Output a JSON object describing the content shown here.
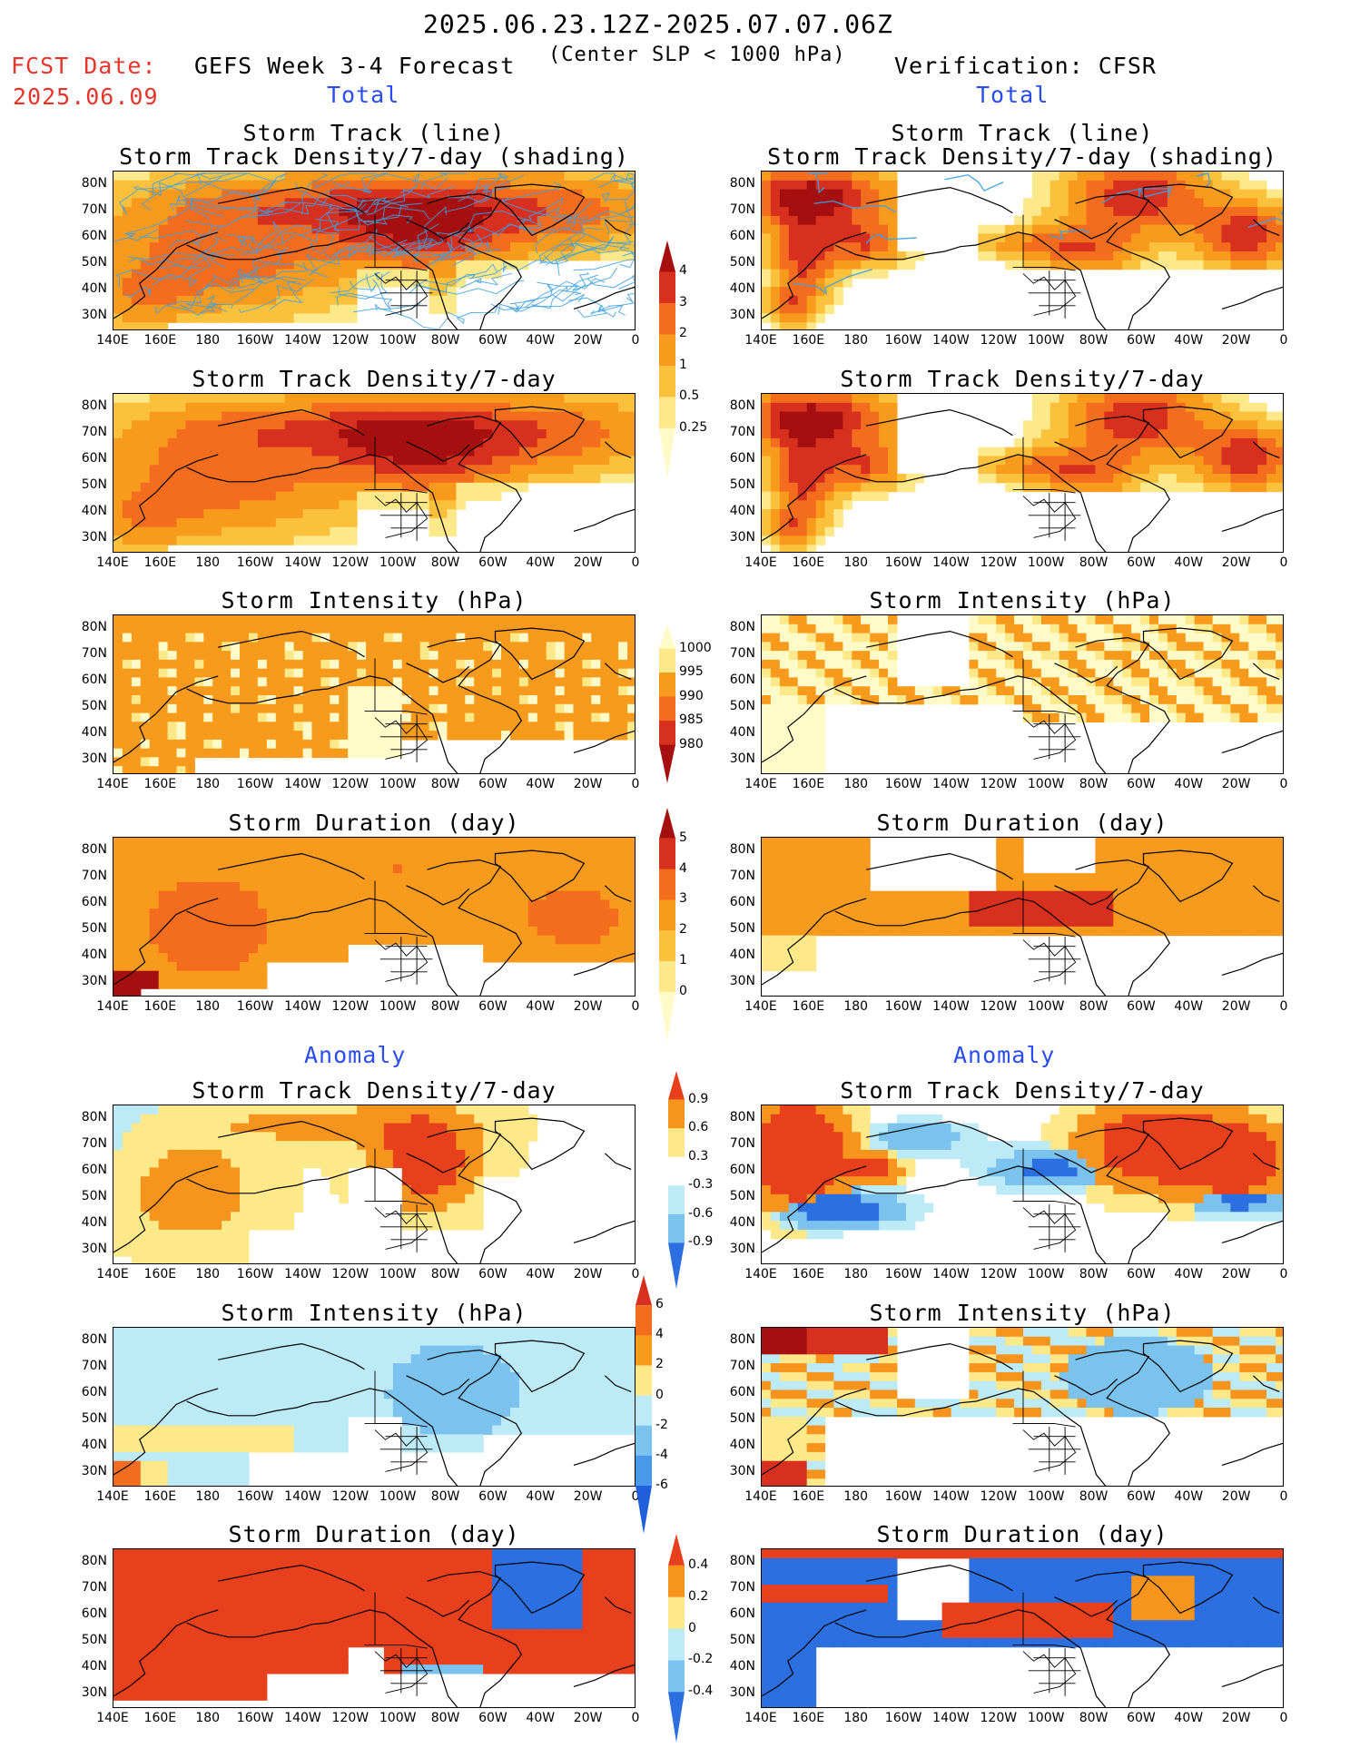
{
  "header": {
    "date_range": "2025.06.23.12Z-2025.07.07.06Z",
    "fcst_label": "FCST Date:",
    "fcst_date": "2025.06.09",
    "left_title": "GEFS Week 3-4 Forecast",
    "center_note": "(Center SLP < 1000 hPa)",
    "right_title": "Verification: CFSR"
  },
  "sections": {
    "total": "Total",
    "anomaly": "Anomaly"
  },
  "panel_titles": {
    "track_line": "Storm Track (line)",
    "track_density_shading": "Storm Track Density/7-day (shading)",
    "track_density": "Storm Track Density/7-day",
    "intensity": "Storm Intensity (hPa)",
    "duration": "Storm Duration (day)"
  },
  "axes": {
    "lat_labels": [
      "80N",
      "70N",
      "60N",
      "50N",
      "40N",
      "30N"
    ],
    "lon_labels": [
      "140E",
      "160E",
      "180",
      "160W",
      "140W",
      "120W",
      "100W",
      "80W",
      "60W",
      "40W",
      "20W",
      "0"
    ]
  },
  "colorbars": {
    "density": {
      "labels": [
        "4",
        "3",
        "2",
        "1",
        "0.5",
        "0.25"
      ],
      "colors": [
        "#a50f0f",
        "#d7301f",
        "#f46d1f",
        "#f89a1c",
        "#fcc13c",
        "#fde88a",
        "#fffbc8"
      ]
    },
    "intensity": {
      "labels": [
        "1000",
        "995",
        "990",
        "985",
        "980"
      ],
      "colors": [
        "#fffbc8",
        "#fde88a",
        "#f89a1c",
        "#f46d1f",
        "#d7301f",
        "#a50f0f"
      ]
    },
    "duration": {
      "labels": [
        "5",
        "4",
        "3",
        "2",
        "1",
        "0"
      ],
      "colors": [
        "#a50f0f",
        "#d7301f",
        "#f46d1f",
        "#f89a1c",
        "#fcc13c",
        "#fde88a",
        "#fffbc8"
      ]
    },
    "anom_density": {
      "labels": [
        "0.9",
        "0.6",
        "0.3",
        "-0.3",
        "-0.6",
        "-0.9"
      ],
      "colors": [
        "#e8401c",
        "#f7941d",
        "#fde88a",
        "#ffffff",
        "#bdeaf7",
        "#7cc2ef",
        "#2c6fe0"
      ]
    },
    "anom_intensity": {
      "labels": [
        "6",
        "4",
        "2",
        "0",
        "-2",
        "-4",
        "-6"
      ],
      "colors": [
        "#d7301f",
        "#f46d1f",
        "#f89a1c",
        "#fde88a",
        "#bdeaf7",
        "#7cc2ef",
        "#4a98ea",
        "#1f5fdc"
      ]
    },
    "anom_duration": {
      "labels": [
        "0.4",
        "0.2",
        "0",
        "-0.2",
        "-0.4"
      ],
      "colors": [
        "#e8401c",
        "#f7941d",
        "#fde88a",
        "#bdeaf7",
        "#7cc2ef",
        "#2c6fe0"
      ]
    }
  },
  "palette": {
    "dark_red": "#a50f0f",
    "red": "#d7301f",
    "orange_red": "#f46d1f",
    "orange": "#f89a1c",
    "light_orange": "#fcc13c",
    "yellow": "#fde88a",
    "pale_yellow": "#fffbc8",
    "light_blue": "#bdeaf7",
    "mid_blue": "#7cc2ef",
    "blue": "#2c6fe0",
    "track_line": "#3da0e0"
  }
}
